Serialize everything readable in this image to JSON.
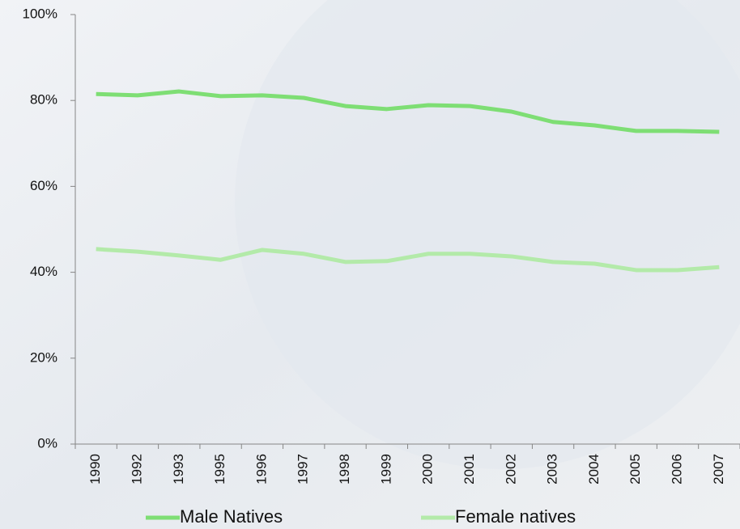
{
  "chart_data": {
    "type": "line",
    "categories": [
      "1990",
      "1992",
      "1993",
      "1995",
      "1996",
      "1997",
      "1998",
      "1999",
      "2000",
      "2001",
      "2002",
      "2003",
      "2004",
      "2005",
      "2006",
      "2007"
    ],
    "series": [
      {
        "name": "Male Natives",
        "color": "#7ede74",
        "values": [
          81.5,
          81.2,
          82.1,
          81.0,
          81.2,
          80.6,
          78.7,
          78.0,
          78.9,
          78.7,
          77.4,
          75.0,
          74.2,
          72.9,
          72.9,
          72.7
        ]
      },
      {
        "name": "Female natives",
        "color": "#b3eaa9",
        "values": [
          45.4,
          44.8,
          43.9,
          42.9,
          45.2,
          44.3,
          42.4,
          42.6,
          44.3,
          44.3,
          43.7,
          42.4,
          42.0,
          40.5,
          40.5,
          41.2
        ]
      }
    ],
    "ylim": [
      0,
      100
    ],
    "yticks": [
      {
        "value": 0,
        "label": "0%"
      },
      {
        "value": 20,
        "label": "20%"
      },
      {
        "value": 40,
        "label": "40%"
      },
      {
        "value": 60,
        "label": "60%"
      },
      {
        "value": 80,
        "label": "80%"
      },
      {
        "value": 100,
        "label": "100%"
      }
    ],
    "grid": false
  }
}
